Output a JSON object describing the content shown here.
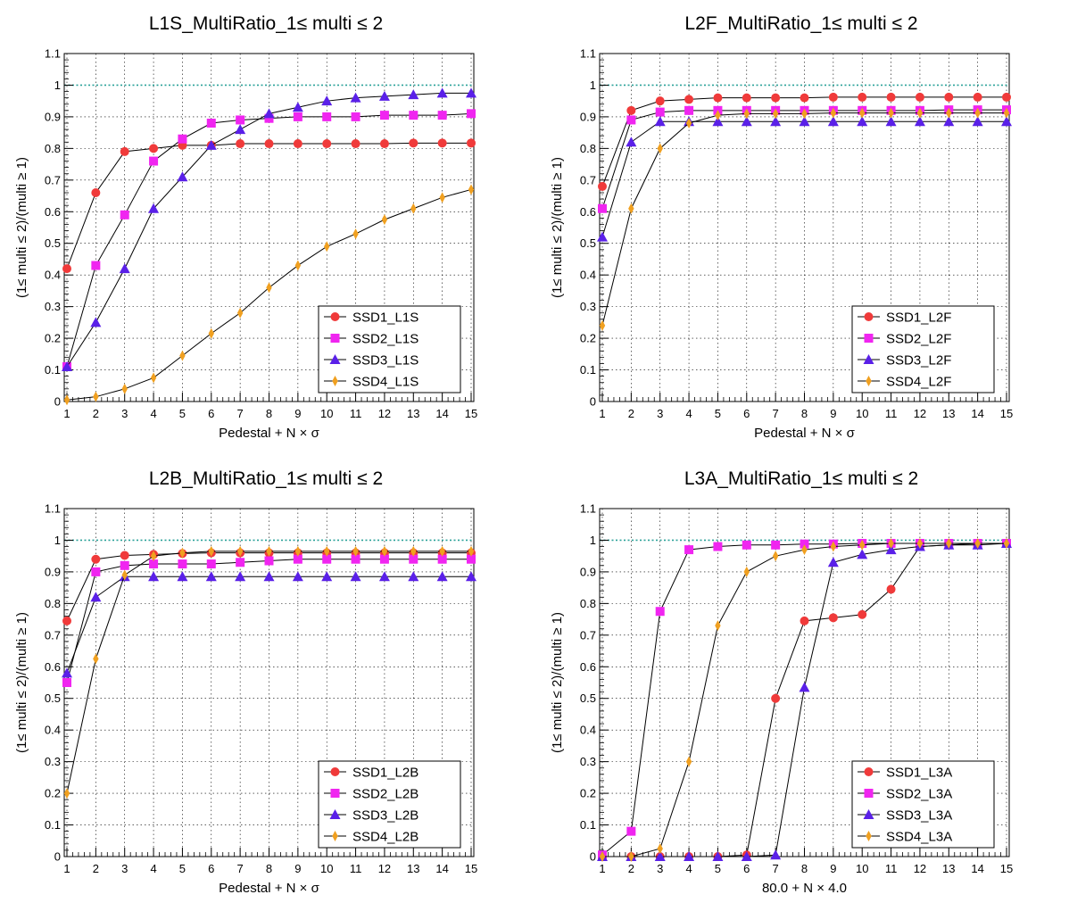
{
  "page": {
    "background": "#ffffff"
  },
  "chart_data": [
    {
      "type": "line",
      "title": "L1S_MultiRatio_1≤ multi ≤ 2",
      "xlabel": "Pedestal + N × σ",
      "ylabel": "(1≤ multi ≤ 2)/(multi ≥ 1)",
      "xlim": [
        1,
        15
      ],
      "ylim": [
        0,
        1.1
      ],
      "xticks": [
        "1",
        "2",
        "3",
        "4",
        "5",
        "6",
        "7",
        "8",
        "9",
        "10",
        "11",
        "12",
        "13",
        "14",
        "15"
      ],
      "yticks": [
        "0",
        "0.1",
        "0.2",
        "0.3",
        "0.4",
        "0.5",
        "0.6",
        "0.7",
        "0.8",
        "0.9",
        "1",
        "1.1"
      ],
      "grid": true,
      "reference_line": {
        "y": 1.0,
        "color": "#2aa198",
        "style": "dotted"
      },
      "legend_position": "bottom-right",
      "x": [
        1,
        2,
        3,
        4,
        5,
        6,
        7,
        8,
        9,
        10,
        11,
        12,
        13,
        14,
        15
      ],
      "series": [
        {
          "name": "SSD1_L1S",
          "color": "#f03a3a",
          "marker": "circle",
          "values": [
            0.42,
            0.66,
            0.79,
            0.8,
            0.81,
            0.81,
            0.815,
            0.815,
            0.815,
            0.815,
            0.815,
            0.815,
            0.817,
            0.817,
            0.817
          ]
        },
        {
          "name": "SSD2_L1S",
          "color": "#f025f0",
          "marker": "square",
          "values": [
            0.11,
            0.43,
            0.59,
            0.76,
            0.83,
            0.88,
            0.89,
            0.895,
            0.9,
            0.9,
            0.9,
            0.905,
            0.905,
            0.905,
            0.91
          ]
        },
        {
          "name": "SSD3_L1S",
          "color": "#5a20e8",
          "marker": "triangle",
          "values": [
            0.11,
            0.25,
            0.42,
            0.61,
            0.71,
            0.81,
            0.86,
            0.91,
            0.93,
            0.95,
            0.96,
            0.965,
            0.97,
            0.975,
            0.975
          ]
        },
        {
          "name": "SSD4_L1S",
          "color": "#f0a020",
          "marker": "diamond",
          "values": [
            0.005,
            0.015,
            0.04,
            0.075,
            0.145,
            0.215,
            0.28,
            0.36,
            0.43,
            0.49,
            0.53,
            0.575,
            0.61,
            0.645,
            0.67
          ]
        }
      ]
    },
    {
      "type": "line",
      "title": "L2F_MultiRatio_1≤ multi ≤ 2",
      "xlabel": "Pedestal + N × σ",
      "ylabel": "(1≤ multi ≤ 2)/(multi ≥ 1)",
      "xlim": [
        1,
        15
      ],
      "ylim": [
        0,
        1.1
      ],
      "xticks": [
        "1",
        "2",
        "3",
        "4",
        "5",
        "6",
        "7",
        "8",
        "9",
        "10",
        "11",
        "12",
        "13",
        "14",
        "15"
      ],
      "yticks": [
        "0",
        "0.1",
        "0.2",
        "0.3",
        "0.4",
        "0.5",
        "0.6",
        "0.7",
        "0.8",
        "0.9",
        "1",
        "1.1"
      ],
      "grid": true,
      "reference_line": {
        "y": 1.0,
        "color": "#2aa198",
        "style": "dotted"
      },
      "legend_position": "bottom-right",
      "x": [
        1,
        2,
        3,
        4,
        5,
        6,
        7,
        8,
        9,
        10,
        11,
        12,
        13,
        14,
        15
      ],
      "series": [
        {
          "name": "SSD1_L2F",
          "color": "#f03a3a",
          "marker": "circle",
          "values": [
            0.68,
            0.92,
            0.95,
            0.955,
            0.96,
            0.96,
            0.96,
            0.96,
            0.962,
            0.962,
            0.962,
            0.962,
            0.962,
            0.962,
            0.962
          ]
        },
        {
          "name": "SSD2_L2F",
          "color": "#f025f0",
          "marker": "square",
          "values": [
            0.61,
            0.89,
            0.915,
            0.92,
            0.92,
            0.92,
            0.92,
            0.92,
            0.92,
            0.92,
            0.92,
            0.92,
            0.922,
            0.922,
            0.922
          ]
        },
        {
          "name": "SSD3_L2F",
          "color": "#5a20e8",
          "marker": "triangle",
          "values": [
            0.52,
            0.82,
            0.885,
            0.885,
            0.885,
            0.885,
            0.885,
            0.885,
            0.885,
            0.885,
            0.885,
            0.885,
            0.885,
            0.885,
            0.885
          ]
        },
        {
          "name": "SSD4_L2F",
          "color": "#f0a020",
          "marker": "diamond",
          "values": [
            0.24,
            0.61,
            0.8,
            0.88,
            0.905,
            0.91,
            0.91,
            0.91,
            0.912,
            0.912,
            0.912,
            0.912,
            0.912,
            0.912,
            0.912
          ]
        }
      ]
    },
    {
      "type": "line",
      "title": "L2B_MultiRatio_1≤ multi ≤ 2",
      "xlabel": "Pedestal + N × σ",
      "ylabel": "(1≤ multi ≤ 2)/(multi ≥ 1)",
      "xlim": [
        1,
        15
      ],
      "ylim": [
        0,
        1.1
      ],
      "xticks": [
        "1",
        "2",
        "3",
        "4",
        "5",
        "6",
        "7",
        "8",
        "9",
        "10",
        "11",
        "12",
        "13",
        "14",
        "15"
      ],
      "yticks": [
        "0",
        "0.1",
        "0.2",
        "0.3",
        "0.4",
        "0.5",
        "0.6",
        "0.7",
        "0.8",
        "0.9",
        "1",
        "1.1"
      ],
      "grid": true,
      "reference_line": {
        "y": 1.0,
        "color": "#2aa198",
        "style": "dotted"
      },
      "legend_position": "bottom-right",
      "x": [
        1,
        2,
        3,
        4,
        5,
        6,
        7,
        8,
        9,
        10,
        11,
        12,
        13,
        14,
        15
      ],
      "series": [
        {
          "name": "SSD1_L2B",
          "color": "#f03a3a",
          "marker": "circle",
          "values": [
            0.745,
            0.94,
            0.952,
            0.955,
            0.958,
            0.96,
            0.96,
            0.96,
            0.96,
            0.96,
            0.96,
            0.96,
            0.96,
            0.96,
            0.96
          ]
        },
        {
          "name": "SSD2_L2B",
          "color": "#f025f0",
          "marker": "square",
          "values": [
            0.55,
            0.9,
            0.92,
            0.925,
            0.925,
            0.925,
            0.93,
            0.935,
            0.94,
            0.94,
            0.94,
            0.94,
            0.94,
            0.94,
            0.94
          ]
        },
        {
          "name": "SSD3_L2B",
          "color": "#5a20e8",
          "marker": "triangle",
          "values": [
            0.58,
            0.82,
            0.885,
            0.885,
            0.885,
            0.885,
            0.885,
            0.885,
            0.885,
            0.885,
            0.885,
            0.885,
            0.885,
            0.885,
            0.885
          ]
        },
        {
          "name": "SSD4_L2B",
          "color": "#f0a020",
          "marker": "diamond",
          "values": [
            0.2,
            0.625,
            0.89,
            0.95,
            0.96,
            0.965,
            0.965,
            0.965,
            0.965,
            0.965,
            0.965,
            0.965,
            0.965,
            0.965,
            0.965
          ]
        }
      ]
    },
    {
      "type": "line",
      "title": "L3A_MultiRatio_1≤ multi ≤ 2",
      "xlabel": "80.0 + N × 4.0",
      "ylabel": "(1≤ multi ≤ 2)/(multi ≥ 1)",
      "xlim": [
        1,
        15
      ],
      "ylim": [
        0,
        1.1
      ],
      "xticks": [
        "1",
        "2",
        "3",
        "4",
        "5",
        "6",
        "7",
        "8",
        "9",
        "10",
        "11",
        "12",
        "13",
        "14",
        "15"
      ],
      "yticks": [
        "0",
        "0.1",
        "0.2",
        "0.3",
        "0.4",
        "0.5",
        "0.6",
        "0.7",
        "0.8",
        "0.9",
        "1",
        "1.1"
      ],
      "grid": true,
      "reference_line": {
        "y": 1.0,
        "color": "#2aa198",
        "style": "dotted"
      },
      "legend_position": "bottom-right",
      "x": [
        1,
        2,
        3,
        4,
        5,
        6,
        7,
        8,
        9,
        10,
        11,
        12,
        13,
        14,
        15
      ],
      "series": [
        {
          "name": "SSD1_L3A",
          "color": "#f03a3a",
          "marker": "circle",
          "values": [
            0.0,
            0.0,
            0.0,
            0.0,
            0.0,
            0.005,
            0.5,
            0.745,
            0.755,
            0.765,
            0.845,
            0.98,
            0.985,
            0.99,
            0.99
          ]
        },
        {
          "name": "SSD2_L3A",
          "color": "#f025f0",
          "marker": "square",
          "values": [
            0.005,
            0.08,
            0.775,
            0.97,
            0.98,
            0.985,
            0.985,
            0.988,
            0.988,
            0.99,
            0.99,
            0.99,
            0.99,
            0.99,
            0.99
          ]
        },
        {
          "name": "SSD3_L3A",
          "color": "#5a20e8",
          "marker": "triangle",
          "values": [
            0.0,
            0.0,
            0.0,
            0.0,
            0.0,
            0.0,
            0.005,
            0.535,
            0.93,
            0.955,
            0.97,
            0.98,
            0.985,
            0.985,
            0.99
          ]
        },
        {
          "name": "SSD4_L3A",
          "color": "#f0a020",
          "marker": "diamond",
          "values": [
            0.0,
            0.0,
            0.025,
            0.3,
            0.73,
            0.9,
            0.95,
            0.97,
            0.98,
            0.985,
            0.99,
            0.99,
            0.99,
            0.99,
            0.99
          ]
        }
      ]
    }
  ]
}
